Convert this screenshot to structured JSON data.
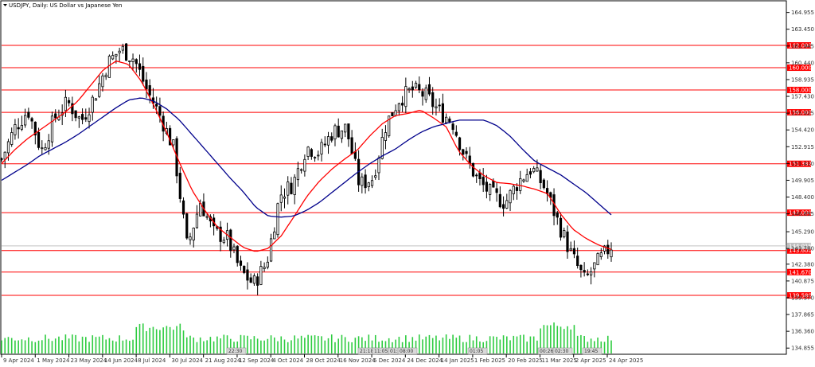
{
  "chart_title": "USDJPY, Daily:  US Dollar vs Japanese Yen",
  "time_labels": [
    "9 Apr 2024",
    "1 May 2024",
    "23 May 2024",
    "14 Jun 2024",
    "8 Jul 2024",
    "30 Jul 2024",
    "21 Aug 2024",
    "12 Sep 2024",
    "4 Oct 2024",
    "28 Oct 2024",
    "16 Nov 2024",
    "5 Dec 2024",
    "24 Dec 2024",
    "14 Jan 2025",
    "1 Feb 2025",
    "20 Feb 2025",
    "11 Mar 2025",
    "2 Apr 2025",
    "24 Apr 2025"
  ],
  "price_labels": [
    "164.955",
    "163.450",
    "161.945",
    "160.440",
    "158.935",
    "157.430",
    "155.925",
    "154.420",
    "152.915",
    "151.410",
    "149.905",
    "148.400",
    "146.895",
    "145.290",
    "143.780",
    "142.380",
    "140.875",
    "139.370",
    "137.865",
    "136.360",
    "134.855"
  ],
  "current_price": "144.015",
  "volume_badges": [
    "22:30",
    "21:18",
    "11:05",
    "01:50",
    "08:00",
    "01:05",
    "00:26",
    "02:30",
    "19:45"
  ],
  "colors": {
    "background": "#ffffff",
    "grid": "#000000",
    "ma_fast": "#ff0000",
    "ma_slow": "#00008b",
    "level_line": "#ff0000",
    "level_label_bg": "#ff0000",
    "volume": "#2ecc40",
    "candle": "#000000"
  },
  "chart_data": {
    "type": "candlestick",
    "title": "USDJPY, Daily:  US Dollar vs Japanese Yen",
    "symbol": "USDJPY",
    "timeframe": "Daily",
    "x_labels": [
      "9 Apr 2024",
      "1 May 2024",
      "23 May 2024",
      "14 Jun 2024",
      "8 Jul 2024",
      "30 Jul 2024",
      "21 Aug 2024",
      "12 Sep 2024",
      "4 Oct 2024",
      "28 Oct 2024",
      "16 Nov 2024",
      "5 Dec 2024",
      "24 Dec 2024",
      "14 Jan 2025",
      "1 Feb 2025",
      "20 Feb 2025",
      "11 Mar 2025",
      "2 Apr 2025",
      "24 Apr 2025"
    ],
    "ylim": [
      134.3,
      166.0
    ],
    "horizontal_levels": [
      {
        "value": 162.0,
        "label": "162.000"
      },
      {
        "value": 160.0,
        "label": "160.000"
      },
      {
        "value": 158.0,
        "label": "158.000"
      },
      {
        "value": 156.0,
        "label": "156.000"
      },
      {
        "value": 151.382,
        "label": "151.382"
      },
      {
        "value": 147.0,
        "label": "147.000"
      },
      {
        "value": 143.6,
        "label": "143.600"
      },
      {
        "value": 141.67,
        "label": "141.670"
      },
      {
        "value": 139.58,
        "label": "139.580"
      }
    ],
    "close_path": [
      {
        "date": "9 Apr 2024",
        "close": 151.8
      },
      {
        "date": "19 Apr 2024",
        "close": 154.6
      },
      {
        "date": "29 Apr 2024",
        "close": 156.2
      },
      {
        "date": "1 May 2024",
        "close": 152.5
      },
      {
        "date": "13 May 2024",
        "close": 155.5
      },
      {
        "date": "23 May 2024",
        "close": 156.9
      },
      {
        "date": "4 Jun 2024",
        "close": 155.2
      },
      {
        "date": "14 Jun 2024",
        "close": 157.4
      },
      {
        "date": "26 Jun 2024",
        "close": 160.4
      },
      {
        "date": "3 Jul 2024",
        "close": 161.7
      },
      {
        "date": "8 Jul 2024",
        "close": 160.8
      },
      {
        "date": "12 Jul 2024",
        "close": 157.9
      },
      {
        "date": "23 Jul 2024",
        "close": 155.6
      },
      {
        "date": "30 Jul 2024",
        "close": 152.7
      },
      {
        "date": "5 Aug 2024",
        "close": 143.9
      },
      {
        "date": "15 Aug 2024",
        "close": 148.0
      },
      {
        "date": "21 Aug 2024",
        "close": 145.2
      },
      {
        "date": "2 Sep 2024",
        "close": 144.8
      },
      {
        "date": "12 Sep 2024",
        "close": 141.8
      },
      {
        "date": "16 Sep 2024",
        "close": 140.6
      },
      {
        "date": "27 Sep 2024",
        "close": 142.5
      },
      {
        "date": "4 Oct 2024",
        "close": 148.6
      },
      {
        "date": "16 Oct 2024",
        "close": 149.6
      },
      {
        "date": "28 Oct 2024",
        "close": 152.9
      },
      {
        "date": "1 Nov 2024",
        "close": 152.4
      },
      {
        "date": "16 Nov 2024",
        "close": 154.3
      },
      {
        "date": "22 Nov 2024",
        "close": 154.6
      },
      {
        "date": "3 Dec 2024",
        "close": 149.5
      },
      {
        "date": "5 Dec 2024",
        "close": 150.1
      },
      {
        "date": "18 Dec 2024",
        "close": 154.9
      },
      {
        "date": "24 Dec 2024",
        "close": 157.2
      },
      {
        "date": "10 Jan 2025",
        "close": 158.0
      },
      {
        "date": "14 Jan 2025",
        "close": 157.5
      },
      {
        "date": "24 Jan 2025",
        "close": 156.1
      },
      {
        "date": "1 Feb 2025",
        "close": 155.2
      },
      {
        "date": "10 Feb 2025",
        "close": 151.9
      },
      {
        "date": "20 Feb 2025",
        "close": 149.8
      },
      {
        "date": "3 Mar 2025",
        "close": 148.6
      },
      {
        "date": "11 Mar 2025",
        "close": 147.9
      },
      {
        "date": "21 Mar 2025",
        "close": 149.8
      },
      {
        "date": "27 Mar 2025",
        "close": 151.0
      },
      {
        "date": "2 Apr 2025",
        "close": 149.2
      },
      {
        "date": "8 Apr 2025",
        "close": 146.1
      },
      {
        "date": "14 Apr 2025",
        "close": 143.2
      },
      {
        "date": "21 Apr 2025",
        "close": 140.9
      },
      {
        "date": "24 Apr 2025",
        "close": 142.6
      },
      {
        "date": "29 Apr 2025",
        "close": 144.0
      }
    ],
    "series": [
      {
        "color": "#ff0000",
        "values": [
          151.4,
          152.6,
          153.6,
          154.4,
          155.2,
          156.0,
          157.0,
          158.4,
          159.8,
          160.6,
          160.3,
          158.8,
          156.6,
          154.2,
          151.5,
          149.0,
          147.2,
          145.7,
          144.8,
          143.9,
          143.5,
          143.8,
          144.9,
          146.6,
          148.4,
          149.8,
          150.9,
          151.8,
          152.6,
          153.9,
          155.0,
          155.7,
          155.9,
          156.2,
          155.5,
          154.7,
          152.5,
          151.2,
          150.3,
          149.7,
          149.6,
          149.4,
          149.1,
          148.7,
          146.9,
          145.5,
          144.7,
          144.1,
          143.7
        ]
      },
      {
        "color": "#00008b",
        "values": [
          149.9,
          150.6,
          151.3,
          152.1,
          152.7,
          153.3,
          154.0,
          154.8,
          155.6,
          156.4,
          157.1,
          157.3,
          157.0,
          156.3,
          155.3,
          154.0,
          152.7,
          151.4,
          150.1,
          148.9,
          147.5,
          146.7,
          146.6,
          146.7,
          147.2,
          147.9,
          148.8,
          149.7,
          150.6,
          151.4,
          152.1,
          152.7,
          153.5,
          154.2,
          154.7,
          155.0,
          155.3,
          155.3,
          155.3,
          154.8,
          153.9,
          152.7,
          151.6,
          151.0,
          150.4,
          149.6,
          148.8,
          147.8,
          146.8
        ]
      }
    ],
    "grid": true
  }
}
